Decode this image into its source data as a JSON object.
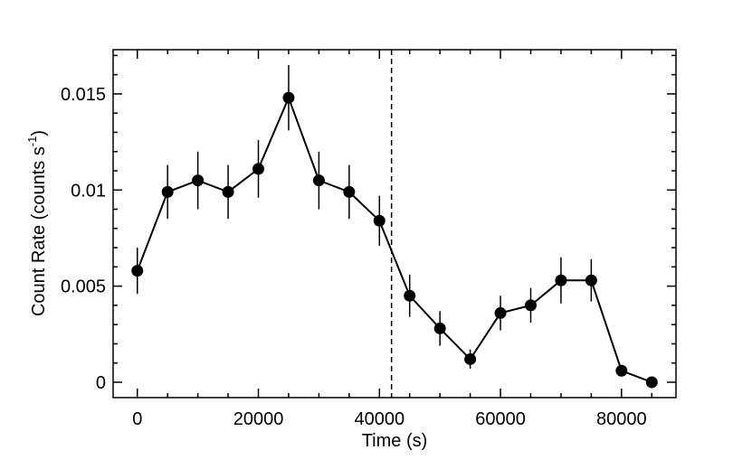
{
  "chart_data": {
    "type": "scatter",
    "title": "",
    "xlabel": "Time (s)",
    "ylabel": {
      "main": "Count Rate (counts s",
      "superscript": "-1",
      "closing": ")"
    },
    "xlim": [
      -4000,
      89000
    ],
    "ylim": [
      -0.0008,
      0.0173
    ],
    "x_ticks": [
      0,
      20000,
      40000,
      60000,
      80000
    ],
    "x_tick_labels": [
      "0",
      "20000",
      "40000",
      "60000",
      "80000"
    ],
    "y_ticks": [
      0,
      0.005,
      0.01,
      0.015
    ],
    "y_tick_labels": [
      "0",
      "0.005",
      "0.01",
      "0.015"
    ],
    "grid": false,
    "legend": "none",
    "series": [
      {
        "marker": "filled-circle",
        "line": "solid",
        "color": "#000000",
        "x": [
          0,
          5000,
          10000,
          15000,
          20000,
          25000,
          30000,
          35000,
          40000,
          45000,
          50000,
          55000,
          60000,
          65000,
          70000,
          75000,
          80000,
          85000
        ],
        "y": [
          0.0058,
          0.0099,
          0.0105,
          0.0099,
          0.0111,
          0.0148,
          0.0105,
          0.0099,
          0.0084,
          0.0045,
          0.0028,
          0.0012,
          0.0036,
          0.004,
          0.0053,
          0.0053,
          0.0006,
          0.0
        ],
        "yerr": [
          0.0012,
          0.0014,
          0.0015,
          0.0014,
          0.0015,
          0.0017,
          0.0015,
          0.0014,
          0.0013,
          0.0011,
          0.0009,
          0.0005,
          0.0009,
          0.0009,
          0.0012,
          0.0011,
          0.0003,
          0.0001
        ]
      }
    ],
    "reference_lines": [
      {
        "orientation": "vertical",
        "x": 42000,
        "style": "dashed",
        "color": "#000000"
      }
    ]
  }
}
